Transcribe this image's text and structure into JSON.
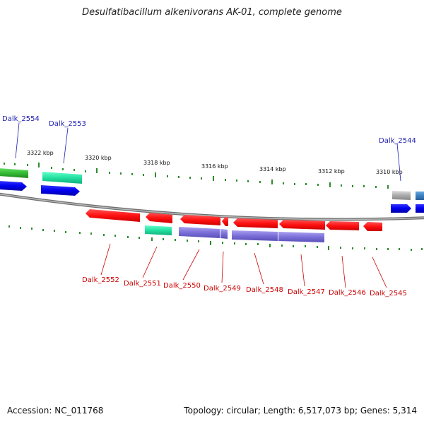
{
  "title": "Desulfatibacillum alkenivorans AK-01, complete genome",
  "footer": {
    "accession": "Accession: NC_011768",
    "topology": "Topology: circular; Length: 6,517,073 bp; Genes: 5,314"
  },
  "scale_labels": [
    "3322 kbp",
    "3320 kbp",
    "3318 kbp",
    "3316 kbp",
    "3314 kbp",
    "3312 kbp",
    "3310 kbp"
  ],
  "colors": {
    "forward_label": "#1a1ab3",
    "reverse_label": "#cc0000",
    "backbone": "#8c8c8c",
    "tick": "#2e8b2e",
    "cds_red": "#ff1a1a",
    "cds_blue": "#0000ee",
    "cds_green": "#33bb33",
    "cds_teal": "#22e0a0",
    "cds_purple": "#7b6fd8",
    "cds_gray": "#aaaaaa",
    "cds_steel": "#3a7fc0"
  },
  "forward_labels": [
    "Dalk_2554",
    "Dalk_2553",
    "Dalk_2544"
  ],
  "reverse_labels": [
    "Dalk_2552",
    "Dalk_2551",
    "Dalk_2550",
    "Dalk_2549",
    "Dalk_2548",
    "Dalk_2547",
    "Dalk_2546",
    "Dalk_2545"
  ]
}
